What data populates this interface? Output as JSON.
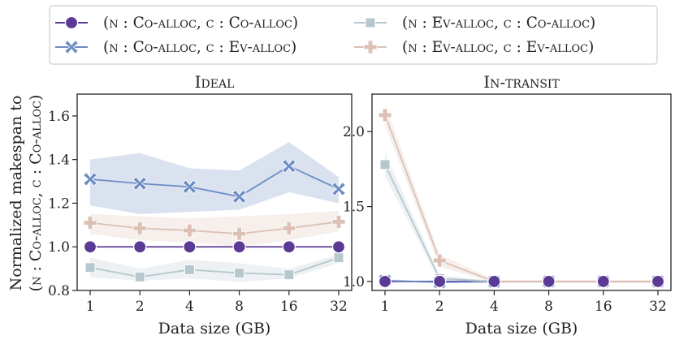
{
  "legend": {
    "entries": [
      {
        "label": "(n : Co-alloc, c : Co-alloc)",
        "color": "#5b3a96",
        "marker": "circle"
      },
      {
        "label": "(n : Co-alloc, c : Ev-alloc)",
        "color": "#6c8cc4",
        "marker": "x"
      },
      {
        "label": "(n : Ev-alloc, c : Co-alloc)",
        "color": "#b7c7ce",
        "marker": "square"
      },
      {
        "label": "(n : Ev-alloc, c : Ev-alloc)",
        "color": "#dcc0b4",
        "marker": "plus"
      }
    ]
  },
  "ylabel_line1": "Normalized makespan to",
  "ylabel_line2": "(n : Co-alloc, c : Co-alloc)",
  "chart_data": [
    {
      "type": "line",
      "title": "Ideal",
      "xlabel": "Data size (GB)",
      "categories": [
        "1",
        "2",
        "4",
        "8",
        "16",
        "32"
      ],
      "ylim": [
        0.8,
        1.7
      ],
      "yticks": [
        "0.8",
        "1.0",
        "1.2",
        "1.4",
        "1.6"
      ],
      "series": [
        {
          "name": "(n : Co-alloc, c : Co-alloc)",
          "values": [
            1.0,
            1.0,
            1.0,
            1.0,
            1.0,
            1.0
          ],
          "band": [
            [
              1.0,
              1.0
            ],
            [
              1.0,
              1.0
            ],
            [
              1.0,
              1.0
            ],
            [
              1.0,
              1.0
            ],
            [
              1.0,
              1.0
            ],
            [
              1.0,
              1.0
            ]
          ]
        },
        {
          "name": "(n : Co-alloc, c : Ev-alloc)",
          "values": [
            1.31,
            1.29,
            1.275,
            1.23,
            1.37,
            1.265
          ],
          "band": [
            [
              1.19,
              1.4
            ],
            [
              1.15,
              1.43
            ],
            [
              1.16,
              1.36
            ],
            [
              1.17,
              1.35
            ],
            [
              1.25,
              1.48
            ],
            [
              1.2,
              1.32
            ]
          ]
        },
        {
          "name": "(n : Ev-alloc, c : Co-alloc)",
          "values": [
            0.905,
            0.862,
            0.895,
            0.88,
            0.872,
            0.95
          ],
          "band": [
            [
              0.86,
              0.95
            ],
            [
              0.845,
              0.9
            ],
            [
              0.855,
              0.94
            ],
            [
              0.84,
              0.925
            ],
            [
              0.855,
              0.9
            ],
            [
              0.925,
              0.965
            ]
          ]
        },
        {
          "name": "(n : Ev-alloc, c : Ev-alloc)",
          "values": [
            1.11,
            1.085,
            1.075,
            1.06,
            1.085,
            1.115
          ],
          "band": [
            [
              1.06,
              1.15
            ],
            [
              1.03,
              1.14
            ],
            [
              1.02,
              1.13
            ],
            [
              1.0,
              1.14
            ],
            [
              1.03,
              1.15
            ],
            [
              1.07,
              1.165
            ]
          ]
        }
      ]
    },
    {
      "type": "line",
      "title": "In-transit",
      "xlabel": "Data size (GB)",
      "categories": [
        "1",
        "2",
        "4",
        "8",
        "16",
        "32"
      ],
      "ylim": [
        0.94,
        2.25
      ],
      "yticks": [
        "1.0",
        "1.5",
        "2.0"
      ],
      "series": [
        {
          "name": "(n : Co-alloc, c : Co-alloc)",
          "values": [
            1.0,
            1.0,
            1.0,
            1.0,
            1.0,
            1.0
          ],
          "band": [
            [
              1.0,
              1.0
            ],
            [
              1.0,
              1.0
            ],
            [
              1.0,
              1.0
            ],
            [
              1.0,
              1.0
            ],
            [
              1.0,
              1.0
            ],
            [
              1.0,
              1.0
            ]
          ]
        },
        {
          "name": "(n : Co-alloc, c : Ev-alloc)",
          "values": [
            1.005,
            0.995,
            0.998,
            1.0,
            1.0,
            1.0
          ],
          "band": [
            [
              0.995,
              1.015
            ],
            [
              0.99,
              1.0
            ],
            [
              0.995,
              1.002
            ],
            [
              0.998,
              1.002
            ],
            [
              0.998,
              1.002
            ],
            [
              0.998,
              1.002
            ]
          ]
        },
        {
          "name": "(n : Ev-alloc, c : Co-alloc)",
          "values": [
            1.78,
            1.02,
            1.0,
            1.0,
            1.0,
            1.0
          ],
          "band": [
            [
              1.7,
              1.86
            ],
            [
              1.0,
              1.04
            ],
            [
              0.995,
              1.005
            ],
            [
              0.995,
              1.005
            ],
            [
              0.995,
              1.005
            ],
            [
              0.995,
              1.005
            ]
          ]
        },
        {
          "name": "(n : Ev-alloc, c : Ev-alloc)",
          "values": [
            2.11,
            1.14,
            1.0,
            1.0,
            1.0,
            1.0
          ],
          "band": [
            [
              2.04,
              2.18
            ],
            [
              1.1,
              1.18
            ],
            [
              0.99,
              1.01
            ],
            [
              0.99,
              1.01
            ],
            [
              0.99,
              1.01
            ],
            [
              0.99,
              1.01
            ]
          ]
        }
      ]
    }
  ]
}
